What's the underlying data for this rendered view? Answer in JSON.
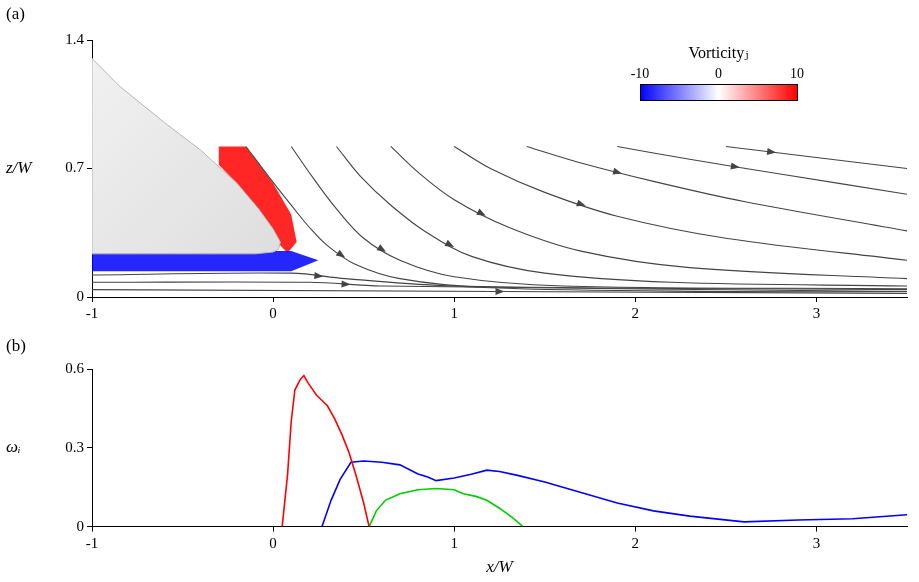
{
  "chart_data": [
    {
      "type": "flow_field",
      "panel": "(a)",
      "y_label": "z/W",
      "xlim": [
        -1,
        3.5
      ],
      "xticks": [
        -1,
        0,
        1,
        2,
        3
      ],
      "ylim": [
        0,
        1.4
      ],
      "yticks": [
        0,
        0.7,
        1.4
      ],
      "grid": false,
      "colorbar": {
        "title": "Vorticityⱼ",
        "range": [
          -10,
          10
        ],
        "ticks": [
          -10,
          0,
          10
        ],
        "colors": [
          "#0000ff",
          "#ffffff",
          "#ff0000"
        ]
      },
      "vorticity_regions": [
        {
          "value": 10,
          "points": [
            [
              -0.3,
              0.82
            ],
            [
              -0.15,
              0.82
            ],
            [
              0.0,
              0.62
            ],
            [
              0.1,
              0.45
            ],
            [
              0.13,
              0.3
            ],
            [
              0.08,
              0.24
            ],
            [
              0.04,
              0.28
            ],
            [
              0.0,
              0.37
            ],
            [
              -0.08,
              0.48
            ],
            [
              -0.2,
              0.62
            ],
            [
              -0.3,
              0.72
            ]
          ]
        },
        {
          "value": -10,
          "points": [
            [
              -1,
              0.25
            ],
            [
              0.1,
              0.25
            ],
            [
              0.25,
              0.2
            ],
            [
              0.1,
              0.14
            ],
            [
              -1,
              0.14
            ]
          ]
        }
      ],
      "body": {
        "color": "#d9d9d9",
        "points": [
          [
            -1,
            1.3
          ],
          [
            -0.85,
            1.15
          ],
          [
            -0.6,
            0.95
          ],
          [
            -0.4,
            0.8
          ],
          [
            -0.2,
            0.62
          ],
          [
            -0.08,
            0.48
          ],
          [
            0.0,
            0.37
          ],
          [
            0.04,
            0.3
          ],
          [
            0.03,
            0.26
          ],
          [
            0.0,
            0.245
          ],
          [
            -0.1,
            0.235
          ],
          [
            -1,
            0.235
          ]
        ]
      },
      "streamlines": {
        "color": "#444444",
        "lines": [
          [
            [
              -0.15,
              0.82
            ],
            [
              -0.02,
              0.65
            ],
            [
              0.1,
              0.5
            ],
            [
              0.2,
              0.38
            ],
            [
              0.3,
              0.28
            ],
            [
              0.45,
              0.18
            ],
            [
              0.7,
              0.1
            ],
            [
              1.2,
              0.05
            ],
            [
              2.5,
              0.03
            ],
            [
              3.5,
              0.03
            ]
          ],
          [
            [
              0.1,
              0.82
            ],
            [
              0.22,
              0.65
            ],
            [
              0.35,
              0.48
            ],
            [
              0.5,
              0.32
            ],
            [
              0.7,
              0.2
            ],
            [
              1.0,
              0.11
            ],
            [
              1.6,
              0.06
            ],
            [
              3.5,
              0.045
            ]
          ],
          [
            [
              0.35,
              0.82
            ],
            [
              0.48,
              0.66
            ],
            [
              0.65,
              0.5
            ],
            [
              0.85,
              0.35
            ],
            [
              1.1,
              0.22
            ],
            [
              1.5,
              0.13
            ],
            [
              2.2,
              0.08
            ],
            [
              3.5,
              0.06
            ]
          ],
          [
            [
              0.65,
              0.82
            ],
            [
              0.8,
              0.68
            ],
            [
              1.0,
              0.53
            ],
            [
              1.3,
              0.38
            ],
            [
              1.7,
              0.25
            ],
            [
              2.3,
              0.16
            ],
            [
              3.5,
              0.1
            ]
          ],
          [
            [
              1.0,
              0.82
            ],
            [
              1.2,
              0.7
            ],
            [
              1.5,
              0.57
            ],
            [
              1.9,
              0.44
            ],
            [
              2.5,
              0.32
            ],
            [
              3.5,
              0.2
            ]
          ],
          [
            [
              1.4,
              0.82
            ],
            [
              1.7,
              0.73
            ],
            [
              2.1,
              0.63
            ],
            [
              2.6,
              0.52
            ],
            [
              3.5,
              0.36
            ]
          ],
          [
            [
              1.9,
              0.82
            ],
            [
              2.3,
              0.75
            ],
            [
              2.8,
              0.67
            ],
            [
              3.5,
              0.56
            ]
          ],
          [
            [
              2.5,
              0.82
            ],
            [
              3.0,
              0.76
            ],
            [
              3.5,
              0.7
            ]
          ],
          [
            [
              -1,
              0.04
            ],
            [
              3.5,
              0.02
            ]
          ],
          [
            [
              -1,
              0.08
            ],
            [
              0.2,
              0.08
            ],
            [
              0.6,
              0.06
            ],
            [
              3.5,
              0.03
            ]
          ],
          [
            [
              -1,
              0.12
            ],
            [
              0.1,
              0.13
            ],
            [
              0.4,
              0.1
            ],
            [
              1.0,
              0.06
            ],
            [
              3.5,
              0.04
            ]
          ]
        ]
      }
    },
    {
      "type": "line",
      "panel": "(b)",
      "x_label": "x/W",
      "y_label": "ωᵢ",
      "xlim": [
        -1,
        3.5
      ],
      "xticks": [
        -1,
        0,
        1,
        2,
        3
      ],
      "ylim": [
        0,
        0.6
      ],
      "yticks": [
        0,
        0.3,
        0.6
      ],
      "grid": false,
      "series": [
        {
          "color": "#ff0000",
          "x": [
            0.05,
            0.08,
            0.1,
            0.12,
            0.15,
            0.17,
            0.19,
            0.21,
            0.24,
            0.27,
            0.3,
            0.34,
            0.38,
            0.42,
            0.46,
            0.5,
            0.53
          ],
          "values": [
            0,
            0.2,
            0.4,
            0.52,
            0.56,
            0.575,
            0.55,
            0.53,
            0.5,
            0.48,
            0.46,
            0.41,
            0.35,
            0.28,
            0.19,
            0.09,
            0
          ]
        },
        {
          "color": "#0000ff",
          "x": [
            0.27,
            0.32,
            0.37,
            0.43,
            0.5,
            0.6,
            0.7,
            0.8,
            0.85,
            0.9,
            1.0,
            1.1,
            1.18,
            1.25,
            1.35,
            1.5,
            1.7,
            1.9,
            2.1,
            2.3,
            2.6,
            2.9,
            3.2,
            3.5
          ],
          "values": [
            0,
            0.1,
            0.18,
            0.245,
            0.25,
            0.245,
            0.235,
            0.2,
            0.19,
            0.175,
            0.185,
            0.2,
            0.215,
            0.21,
            0.195,
            0.17,
            0.13,
            0.09,
            0.06,
            0.04,
            0.018,
            0.025,
            0.03,
            0.045
          ]
        },
        {
          "color": "#00cc00",
          "x": [
            0.53,
            0.57,
            0.62,
            0.7,
            0.8,
            0.9,
            1.0,
            1.05,
            1.12,
            1.18,
            1.25,
            1.32,
            1.38
          ],
          "values": [
            0,
            0.06,
            0.1,
            0.125,
            0.14,
            0.145,
            0.14,
            0.125,
            0.115,
            0.1,
            0.07,
            0.035,
            0
          ]
        }
      ]
    }
  ]
}
